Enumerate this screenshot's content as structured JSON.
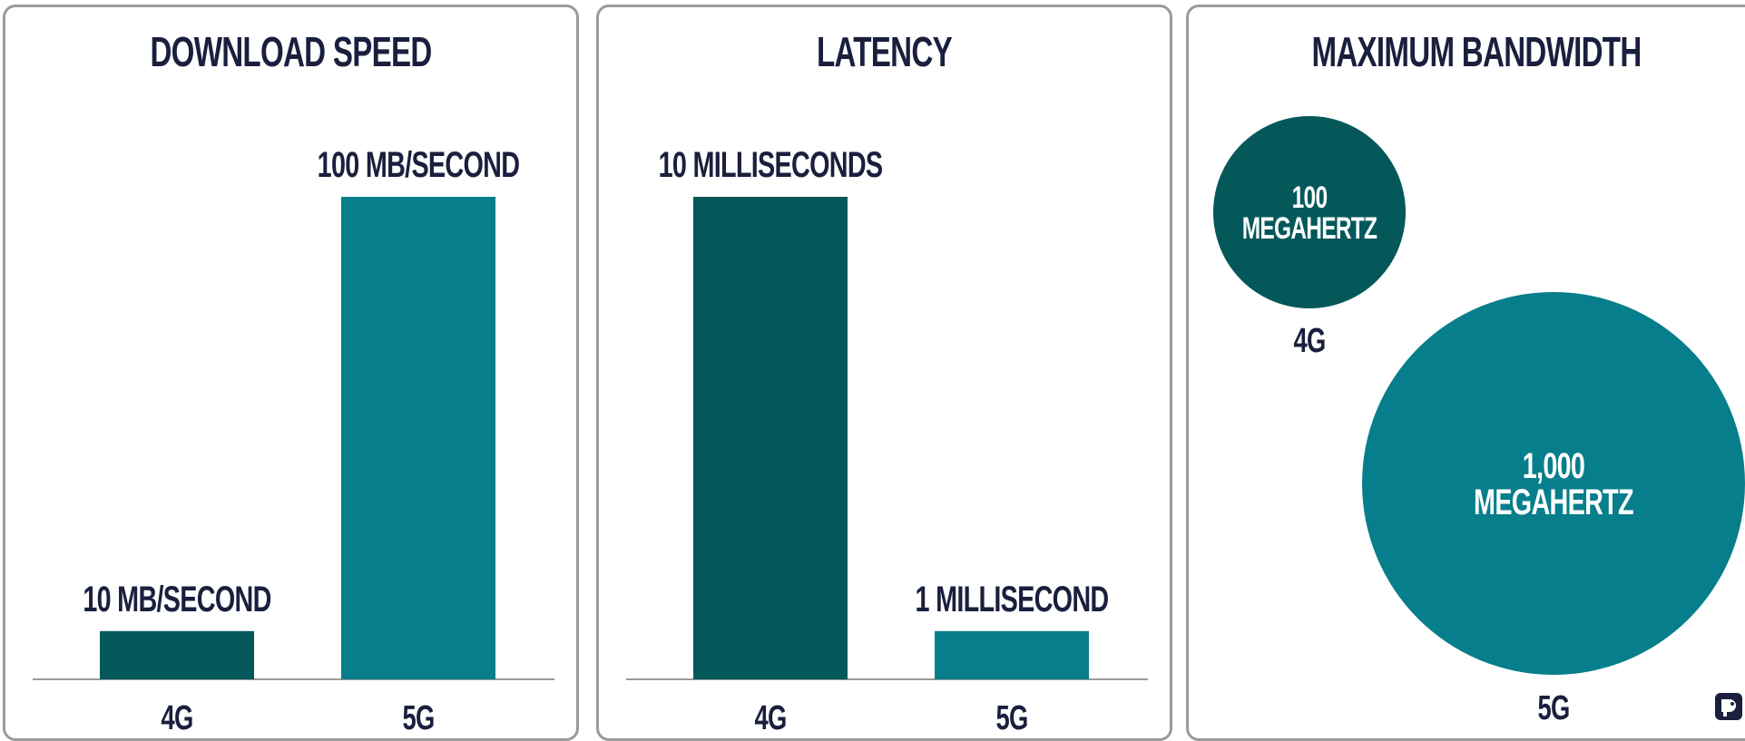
{
  "theme": {
    "dark_teal": "#04585a",
    "teal": "#077e8b",
    "navy": "#1a1f3d",
    "axis": "#9a9a9a"
  },
  "icons": [
    "logo-icon"
  ],
  "chart_data": [
    {
      "type": "bar",
      "title": "DOWNLOAD SPEED",
      "categories": [
        "4G",
        "5G"
      ],
      "values": [
        10,
        100
      ],
      "data_labels": [
        "10 MB/SECOND",
        "100 MB/SECOND"
      ],
      "unit": "MB/second",
      "ylim": [
        0,
        100
      ],
      "grid": false,
      "colors": [
        "#04585a",
        "#077e8b"
      ]
    },
    {
      "type": "bar",
      "title": "LATENCY",
      "categories": [
        "4G",
        "5G"
      ],
      "values": [
        10,
        1
      ],
      "data_labels": [
        "10 MILLISECONDS",
        "1 MILLISECOND"
      ],
      "unit": "milliseconds",
      "ylim": [
        0,
        10
      ],
      "grid": false,
      "colors": [
        "#04585a",
        "#077e8b"
      ]
    },
    {
      "type": "bubble",
      "title": "MAXIMUM BANDWIDTH",
      "categories": [
        "4G",
        "5G"
      ],
      "values": [
        100,
        1000
      ],
      "data_labels": [
        [
          "100",
          "MEGAHERTZ"
        ],
        [
          "1,000",
          "MEGAHERTZ"
        ]
      ],
      "unit": "megahertz",
      "colors": [
        "#04585a",
        "#077e8b"
      ]
    }
  ]
}
